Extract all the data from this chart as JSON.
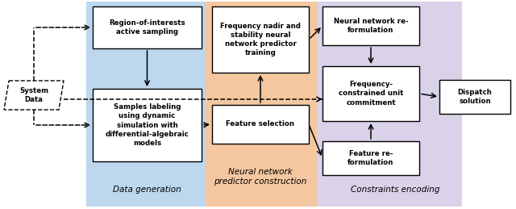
{
  "fig_width": 6.4,
  "fig_height": 2.59,
  "dpi": 100,
  "bg_color": "#ffffff",
  "region_colors": {
    "data_gen": "#bdd7ee",
    "nn_predictor": "#f4c7a0",
    "constraints": "#d9d2e9"
  },
  "region_label_data_gen": "Data generation",
  "region_label_nn": "Neural network\npredictor construction",
  "region_label_ce": "Constraints encoding",
  "font_size_box": 6.2,
  "font_size_region": 7.5
}
